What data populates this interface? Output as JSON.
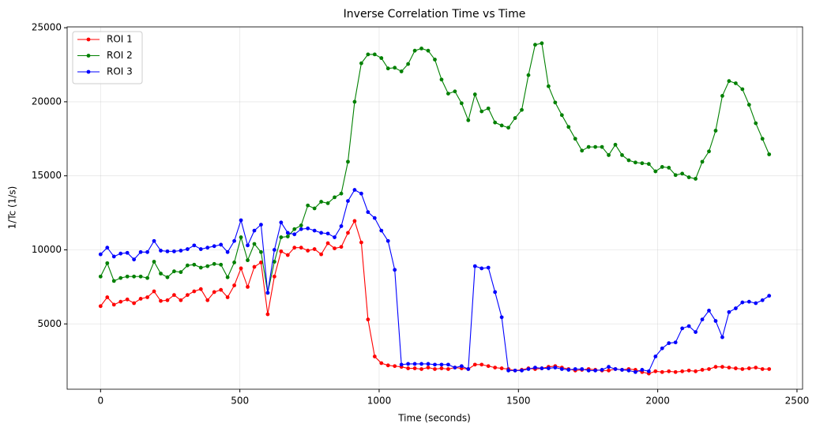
{
  "chart_data": {
    "type": "line",
    "title": "Inverse Correlation Time vs Time",
    "xlabel": "Time (seconds)",
    "ylabel": "1/Tc (1/s)",
    "x": [
      0,
      24,
      48,
      72,
      96,
      120,
      144,
      168,
      192,
      216,
      240,
      264,
      288,
      312,
      336,
      360,
      384,
      408,
      432,
      456,
      480,
      504,
      528,
      552,
      576,
      600,
      624,
      648,
      672,
      696,
      720,
      744,
      768,
      792,
      816,
      840,
      864,
      888,
      912,
      936,
      960,
      984,
      1008,
      1032,
      1056,
      1080,
      1104,
      1128,
      1152,
      1176,
      1200,
      1224,
      1248,
      1272,
      1296,
      1320,
      1344,
      1368,
      1392,
      1416,
      1440,
      1464,
      1488,
      1512,
      1536,
      1560,
      1584,
      1608,
      1632,
      1656,
      1680,
      1704,
      1728,
      1752,
      1776,
      1800,
      1824,
      1848,
      1872,
      1896,
      1920,
      1944,
      1968,
      1992,
      2016,
      2040,
      2064,
      2088,
      2112,
      2136,
      2160,
      2184,
      2208,
      2232,
      2256,
      2280,
      2304,
      2328,
      2352,
      2376,
      2400
    ],
    "series": [
      {
        "name": "ROI 1",
        "color": "#ff0000",
        "values": [
          6200,
          6800,
          6300,
          6500,
          6650,
          6400,
          6700,
          6800,
          7200,
          6550,
          6600,
          6950,
          6600,
          6950,
          7200,
          7350,
          6600,
          7150,
          7300,
          6800,
          7600,
          8750,
          7500,
          8850,
          9150,
          5650,
          8200,
          9900,
          9650,
          10150,
          10150,
          9950,
          10050,
          9700,
          10450,
          10100,
          10200,
          11150,
          11950,
          10500,
          5300,
          2800,
          2350,
          2200,
          2150,
          2100,
          2000,
          2000,
          1950,
          2050,
          1950,
          2000,
          1950,
          2050,
          2000,
          1950,
          2250,
          2250,
          2150,
          2050,
          2000,
          1950,
          1850,
          1900,
          2000,
          1950,
          2000,
          2100,
          2150,
          2050,
          1950,
          1850,
          1900,
          1950,
          1900,
          1850,
          1850,
          1950,
          1900,
          1950,
          1900,
          1750,
          1650,
          1800,
          1750,
          1800,
          1750,
          1800,
          1850,
          1800,
          1900,
          1950,
          2100,
          2100,
          2050,
          2000,
          1950,
          2000,
          2050,
          1950,
          1950
        ]
      },
      {
        "name": "ROI 2",
        "color": "#008000",
        "values": [
          8200,
          9100,
          7900,
          8100,
          8200,
          8200,
          8200,
          8100,
          9200,
          8400,
          8150,
          8550,
          8500,
          8950,
          9000,
          8800,
          8900,
          9050,
          9000,
          8150,
          9150,
          10850,
          9300,
          10400,
          9850,
          7100,
          9200,
          10850,
          10900,
          11400,
          11650,
          13000,
          12800,
          13250,
          13150,
          13550,
          13800,
          15950,
          20000,
          22600,
          23200,
          23200,
          22950,
          22250,
          22300,
          22050,
          22550,
          23450,
          23600,
          23450,
          22850,
          21500,
          20550,
          20700,
          19900,
          18750,
          20500,
          19350,
          19550,
          18600,
          18400,
          18250,
          18900,
          19450,
          21800,
          23850,
          23950,
          21050,
          19950,
          19100,
          18300,
          17500,
          16700,
          16950,
          16950,
          16950,
          16400,
          17100,
          16400,
          16050,
          15900,
          15850,
          15800,
          15300,
          15600,
          15550,
          15050,
          15150,
          14900,
          14800,
          15950,
          16650,
          18050,
          20400,
          21400,
          21250,
          20850,
          19800,
          18550,
          17500,
          16450
        ]
      },
      {
        "name": "ROI 3",
        "color": "#0000ff",
        "values": [
          9700,
          10150,
          9550,
          9750,
          9800,
          9350,
          9850,
          9850,
          10600,
          9950,
          9900,
          9900,
          9950,
          10050,
          10300,
          10050,
          10150,
          10250,
          10350,
          9850,
          10600,
          12000,
          10300,
          11300,
          11700,
          7100,
          10000,
          11850,
          11150,
          11050,
          11400,
          11450,
          11300,
          11150,
          11100,
          10850,
          11600,
          13300,
          14050,
          13800,
          12550,
          12150,
          11300,
          10600,
          8650,
          2250,
          2300,
          2300,
          2300,
          2300,
          2250,
          2250,
          2250,
          2050,
          2150,
          1950,
          8900,
          8750,
          8800,
          7150,
          5450,
          1850,
          1850,
          1850,
          1950,
          2050,
          2000,
          2000,
          2050,
          1950,
          1900,
          1950,
          1950,
          1850,
          1850,
          1900,
          2100,
          1950,
          1900,
          1850,
          1750,
          1900,
          1800,
          2800,
          3350,
          3700,
          3750,
          4700,
          4850,
          4450,
          5300,
          5900,
          5200,
          4100,
          5800,
          6050,
          6450,
          6500,
          6400,
          6600,
          6900
        ]
      }
    ],
    "xlim": [
      -120,
      2520
    ],
    "ylim": [
      590,
      25060
    ],
    "xticks": [
      0,
      500,
      1000,
      1500,
      2000,
      2500
    ],
    "yticks": [
      5000,
      10000,
      15000,
      20000,
      25000
    ],
    "grid": true,
    "legend": "upper left"
  }
}
